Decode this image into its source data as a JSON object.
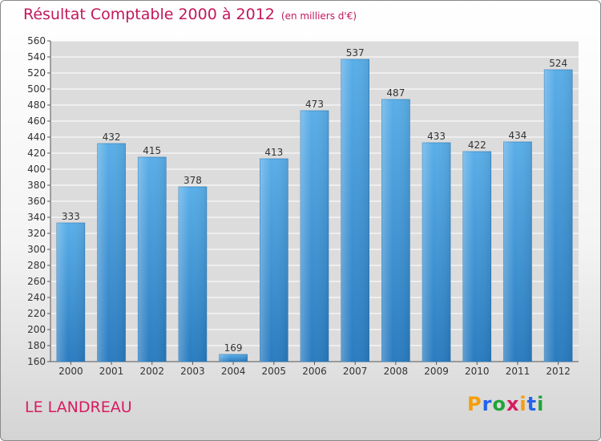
{
  "header": {
    "title": "Résultat Comptable 2000 à 2012",
    "subtitle": "(en milliers d'€)"
  },
  "footer": {
    "place": "LE LANDREAU",
    "brand_letters": [
      "P",
      "r",
      "o",
      "x",
      "i",
      "t",
      "i"
    ],
    "brand_colors": [
      "#f59e0b",
      "#2563eb",
      "#22a33a",
      "#d81b60",
      "#f59e0b",
      "#2563eb",
      "#22a33a"
    ]
  },
  "chart_data": {
    "type": "bar",
    "title": "Résultat Comptable 2000 à 2012",
    "subtitle": "(en milliers d'€)",
    "xlabel": "",
    "ylabel": "",
    "categories": [
      "2000",
      "2001",
      "2002",
      "2003",
      "2004",
      "2005",
      "2006",
      "2007",
      "2008",
      "2009",
      "2010",
      "2011",
      "2012"
    ],
    "values": [
      333,
      432,
      415,
      378,
      169,
      413,
      473,
      537,
      487,
      433,
      422,
      434,
      524
    ],
    "ylim": [
      160,
      560
    ],
    "yticks": [
      160,
      180,
      200,
      220,
      240,
      260,
      280,
      300,
      320,
      340,
      360,
      380,
      400,
      420,
      440,
      460,
      480,
      500,
      520,
      540,
      560
    ],
    "grid": true,
    "bar_color": "#3d94dc",
    "grid_color": "#ffffff",
    "plot_background": "#dcdcdc"
  }
}
